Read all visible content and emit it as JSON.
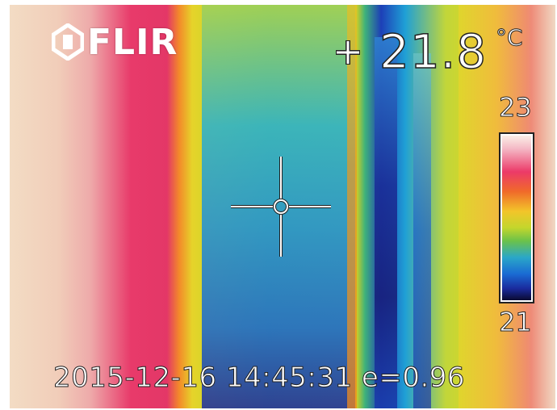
{
  "logo": {
    "text": "FLIR",
    "icon": "flir-logo-icon"
  },
  "measurement": {
    "spot_icon": "spot-crosshair-icon",
    "value": "21.8",
    "unit": "°C"
  },
  "scale": {
    "max": "23",
    "min": "21",
    "palette": "iron-rainbow"
  },
  "footer": {
    "timestamp": "2015-12-16 14:45:31",
    "emissivity": "e=0.96"
  },
  "colors": {
    "overlay_text": "#ffffff",
    "text_outline": "#222222"
  }
}
